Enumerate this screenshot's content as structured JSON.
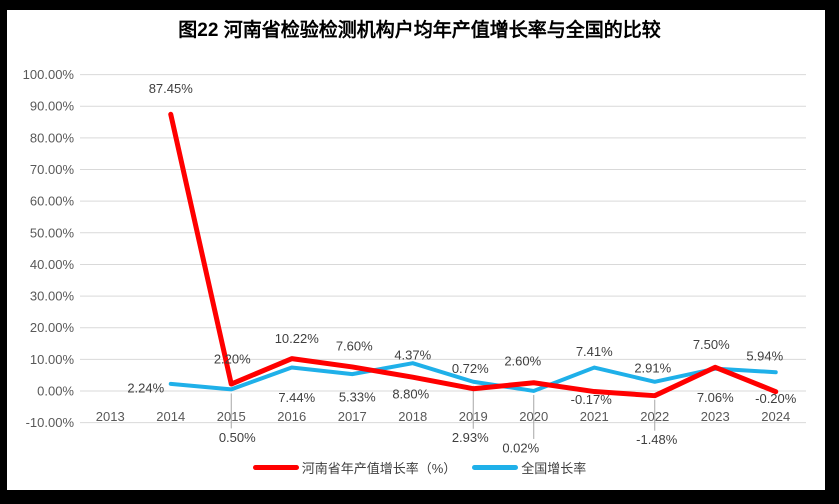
{
  "chart_data": {
    "type": "line",
    "title": "图22  河南省检验检测机构户均年产值增长率与全国的比较",
    "xlabel": "",
    "ylabel": "",
    "categories": [
      "2013",
      "2014",
      "2015",
      "2016",
      "2017",
      "2018",
      "2019",
      "2020",
      "2021",
      "2022",
      "2023",
      "2024"
    ],
    "series": [
      {
        "name": "河南省年产值增长率（%）",
        "color": "#ff0000",
        "stroke_width": 5,
        "values": [
          null,
          87.45,
          2.2,
          10.22,
          7.6,
          4.37,
          0.72,
          2.6,
          -0.17,
          -1.48,
          7.5,
          -0.2
        ],
        "label_offsets": [
          null,
          [
            0,
            -26
          ],
          [
            1,
            -25
          ],
          [
            5,
            -20
          ],
          [
            2,
            -21
          ],
          [
            0,
            -22
          ],
          [
            -3,
            -20
          ],
          [
            -11,
            -22
          ],
          [
            -3,
            8
          ],
          [
            2,
            44
          ],
          [
            -4,
            -23
          ],
          [
            0,
            7
          ]
        ]
      },
      {
        "name": "全国增长率",
        "color": "#1fb0e9",
        "stroke_width": 4,
        "values": [
          null,
          2.24,
          0.5,
          7.44,
          5.33,
          8.8,
          2.93,
          0.02,
          7.41,
          2.91,
          7.06,
          5.94
        ],
        "label_offsets": [
          null,
          [
            -25,
            4
          ],
          [
            6,
            48
          ],
          [
            5,
            30
          ],
          [
            5,
            23
          ],
          [
            -2,
            31
          ],
          [
            -3,
            56
          ],
          [
            -13,
            57
          ],
          [
            0,
            -16
          ],
          [
            -2,
            -14
          ],
          [
            0,
            29
          ],
          [
            -11,
            -16
          ]
        ]
      }
    ],
    "ylim": [
      -10,
      100
    ],
    "ytick_step": 10,
    "ytick_format": "0.00%",
    "grid": true,
    "legend_position": "bottom",
    "gridline_color": "#d9d9d9",
    "axis_label_color": "#595959",
    "data_label_color": "#3f3f3f",
    "leader_color": "#a6a6a6"
  }
}
